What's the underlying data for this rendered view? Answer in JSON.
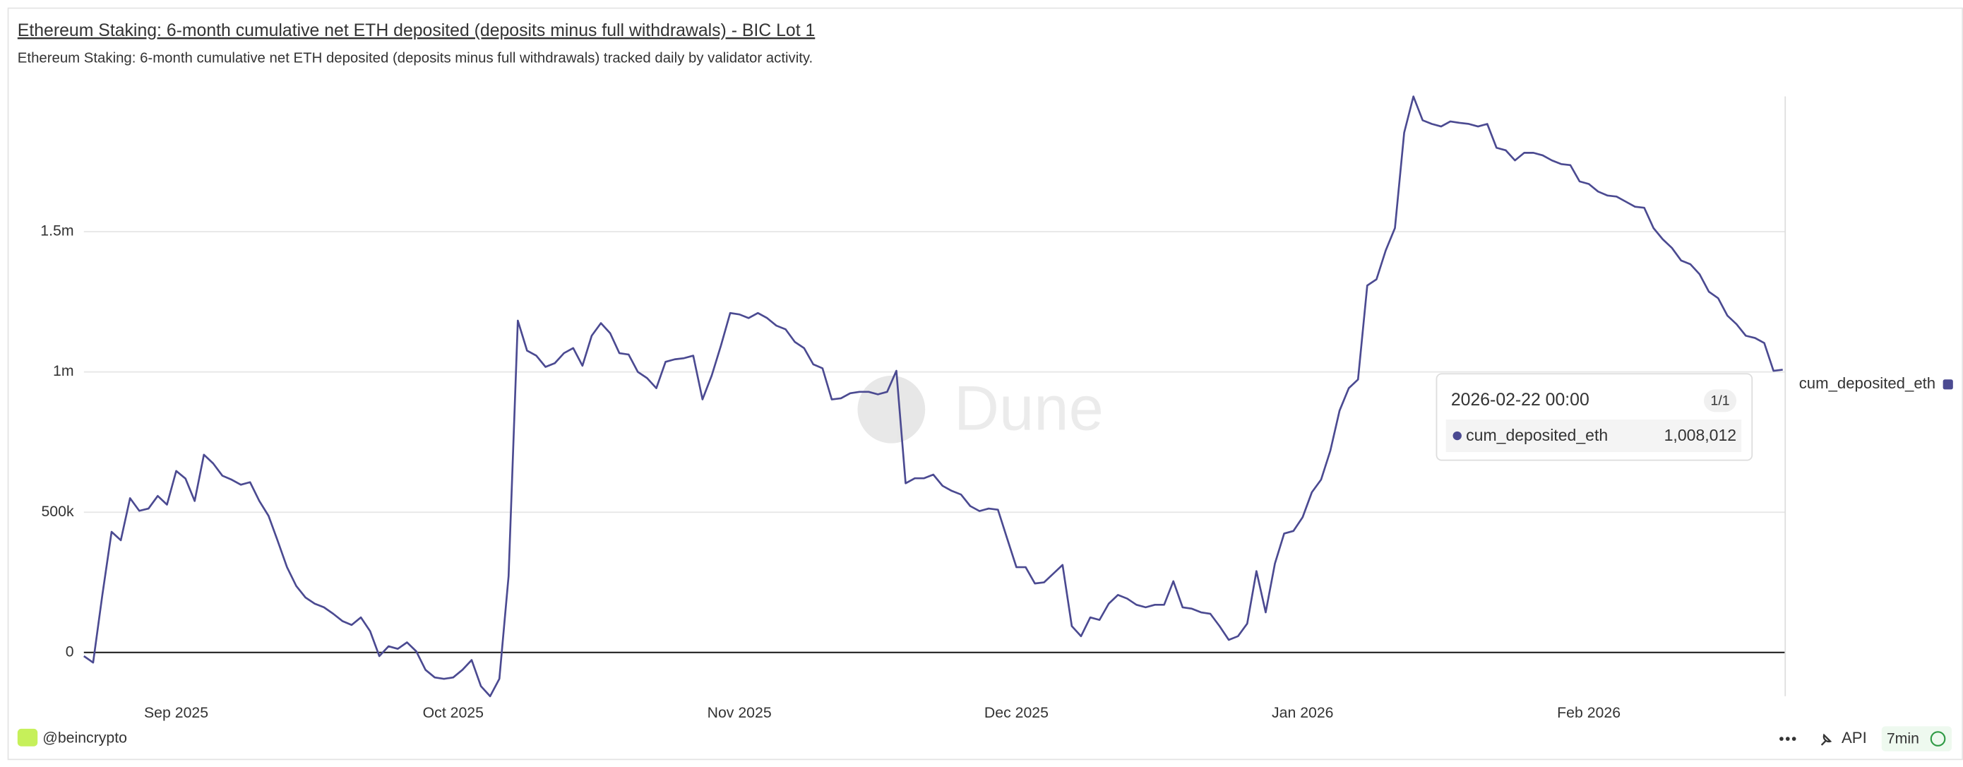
{
  "chart_data": {
    "type": "line",
    "title": "Ethereum Staking: 6-month cumulative net ETH deposited (deposits minus full withdrawals) - BIC Lot 1",
    "subtitle": "Ethereum Staking: 6-month cumulative net ETH deposited (deposits minus full withdrawals) tracked daily by validator activity.",
    "x": [
      "2025-08-22",
      "2025-08-23",
      "2025-08-24",
      "2025-08-25",
      "2025-08-26",
      "2025-08-27",
      "2025-08-28",
      "2025-08-29",
      "2025-08-30",
      "2025-08-31",
      "2025-09-01",
      "2025-09-02",
      "2025-09-03",
      "2025-09-04",
      "2025-09-05",
      "2025-09-06",
      "2025-09-07",
      "2025-09-08",
      "2025-09-09",
      "2025-09-10",
      "2025-09-11",
      "2025-09-12",
      "2025-09-13",
      "2025-09-14",
      "2025-09-15",
      "2025-09-16",
      "2025-09-17",
      "2025-09-18",
      "2025-09-19",
      "2025-09-20",
      "2025-09-21",
      "2025-09-22",
      "2025-09-23",
      "2025-09-24",
      "2025-09-25",
      "2025-09-26",
      "2025-09-27",
      "2025-09-28",
      "2025-09-29",
      "2025-09-30",
      "2025-10-01",
      "2025-10-02",
      "2025-10-03",
      "2025-10-04",
      "2025-10-05",
      "2025-10-06",
      "2025-10-07",
      "2025-10-08",
      "2025-10-09",
      "2025-10-10",
      "2025-10-11",
      "2025-10-12",
      "2025-10-13",
      "2025-10-14",
      "2025-10-15",
      "2025-10-16",
      "2025-10-17",
      "2025-10-18",
      "2025-10-19",
      "2025-10-20",
      "2025-10-21",
      "2025-10-22",
      "2025-10-23",
      "2025-10-24",
      "2025-10-25",
      "2025-10-26",
      "2025-10-27",
      "2025-10-28",
      "2025-10-29",
      "2025-10-30",
      "2025-10-31",
      "2025-11-01",
      "2025-11-02",
      "2025-11-03",
      "2025-11-04",
      "2025-11-05",
      "2025-11-06",
      "2025-11-07",
      "2025-11-08",
      "2025-11-09",
      "2025-11-10",
      "2025-11-11",
      "2025-11-12",
      "2025-11-13",
      "2025-11-14",
      "2025-11-15",
      "2025-11-16",
      "2025-11-17",
      "2025-11-18",
      "2025-11-19",
      "2025-11-20",
      "2025-11-21",
      "2025-11-22",
      "2025-11-23",
      "2025-11-24",
      "2025-11-25",
      "2025-11-26",
      "2025-11-27",
      "2025-11-28",
      "2025-11-29",
      "2025-11-30",
      "2025-12-01",
      "2025-12-02",
      "2025-12-03",
      "2025-12-04",
      "2025-12-05",
      "2025-12-06",
      "2025-12-07",
      "2025-12-08",
      "2025-12-09",
      "2025-12-10",
      "2025-12-11",
      "2025-12-12",
      "2025-12-13",
      "2025-12-14",
      "2025-12-15",
      "2025-12-16",
      "2025-12-17",
      "2025-12-18",
      "2025-12-19",
      "2025-12-20",
      "2025-12-21",
      "2025-12-22",
      "2025-12-23",
      "2025-12-24",
      "2025-12-25",
      "2025-12-26",
      "2025-12-27",
      "2025-12-28",
      "2025-12-29",
      "2025-12-30",
      "2025-12-31",
      "2026-01-01",
      "2026-01-02",
      "2026-01-03",
      "2026-01-04",
      "2026-01-05",
      "2026-01-06",
      "2026-01-07",
      "2026-01-08",
      "2026-01-09",
      "2026-01-10",
      "2026-01-11",
      "2026-01-12",
      "2026-01-13",
      "2026-01-14",
      "2026-01-15",
      "2026-01-16",
      "2026-01-17",
      "2026-01-18",
      "2026-01-19",
      "2026-01-20",
      "2026-01-21",
      "2026-01-22",
      "2026-01-23",
      "2026-01-24",
      "2026-01-25",
      "2026-01-26",
      "2026-01-27",
      "2026-01-28",
      "2026-01-29",
      "2026-01-30",
      "2026-01-31",
      "2026-02-01",
      "2026-02-02",
      "2026-02-03",
      "2026-02-04",
      "2026-02-05",
      "2026-02-06",
      "2026-02-07",
      "2026-02-08",
      "2026-02-09",
      "2026-02-10",
      "2026-02-11",
      "2026-02-12",
      "2026-02-13",
      "2026-02-14",
      "2026-02-15",
      "2026-02-16",
      "2026-02-17",
      "2026-02-18",
      "2026-02-19",
      "2026-02-20",
      "2026-02-21",
      "2026-02-22"
    ],
    "series": [
      {
        "name": "cum_deposited_eth",
        "color": "#4b4a91",
        "values": [
          -13000,
          -36000,
          205000,
          430000,
          400000,
          550000,
          505000,
          513000,
          558000,
          527000,
          647000,
          620000,
          540000,
          705000,
          674000,
          630000,
          616000,
          598000,
          607000,
          540000,
          487000,
          397000,
          304000,
          237000,
          196000,
          174000,
          161000,
          138000,
          112000,
          98000,
          125000,
          76000,
          -13000,
          22000,
          13000,
          36000,
          4000,
          -62000,
          -89000,
          -94000,
          -89000,
          -62000,
          -27000,
          -120000,
          -156000,
          -94000,
          272000,
          1183000,
          1076000,
          1058000,
          1018000,
          1031000,
          1067000,
          1085000,
          1022000,
          1129000,
          1174000,
          1138000,
          1067000,
          1062000,
          1000000,
          978000,
          942000,
          1036000,
          1045000,
          1049000,
          1058000,
          902000,
          987000,
          1094000,
          1210000,
          1205000,
          1192000,
          1210000,
          1192000,
          1165000,
          1152000,
          1107000,
          1085000,
          1027000,
          1013000,
          902000,
          906000,
          924000,
          929000,
          929000,
          920000,
          929000,
          1004000,
          603000,
          621000,
          621000,
          634000,
          594000,
          576000,
          563000,
          522000,
          504000,
          513000,
          509000,
          406000,
          304000,
          304000,
          246000,
          250000,
          281000,
          312000,
          94000,
          58000,
          125000,
          116000,
          174000,
          205000,
          192000,
          170000,
          161000,
          170000,
          170000,
          254000,
          161000,
          156000,
          143000,
          138000,
          94000,
          45000,
          58000,
          103000,
          290000,
          143000,
          317000,
          424000,
          433000,
          482000,
          571000,
          616000,
          719000,
          862000,
          942000,
          973000,
          1308000,
          1330000,
          1433000,
          1513000,
          1853000,
          1982000,
          1897000,
          1884000,
          1875000,
          1893000,
          1888000,
          1884000,
          1875000,
          1884000,
          1799000,
          1790000,
          1754000,
          1781000,
          1781000,
          1772000,
          1754000,
          1741000,
          1737000,
          1679000,
          1670000,
          1643000,
          1629000,
          1625000,
          1607000,
          1589000,
          1585000,
          1513000,
          1473000,
          1442000,
          1397000,
          1384000,
          1348000,
          1286000,
          1263000,
          1201000,
          1170000,
          1129000,
          1121000,
          1103000,
          1004000,
          1008012
        ]
      }
    ],
    "xlim": [
      "2025-08-22",
      "2026-02-22"
    ],
    "xticks": [
      {
        "value": "2025-09-01",
        "label": "Sep 2025"
      },
      {
        "value": "2025-10-01",
        "label": "Oct 2025"
      },
      {
        "value": "2025-11-01",
        "label": "Nov 2025"
      },
      {
        "value": "2025-12-01",
        "label": "Dec 2025"
      },
      {
        "value": "2026-01-01",
        "label": "Jan 2026"
      },
      {
        "value": "2026-02-01",
        "label": "Feb 2026"
      }
    ],
    "ylim": [
      -156000,
      1982000
    ],
    "yticks": [
      0,
      {
        "value": 500000,
        "label": "500k"
      },
      {
        "value": 1000000,
        "label": "1m"
      },
      {
        "value": 1500000,
        "label": "1.5m"
      }
    ],
    "grid": true,
    "legend": "right",
    "tooltip": {
      "title": "2026-02-22 00:00",
      "counter": "1/1",
      "value": 1008012,
      "label": "1,008,012"
    }
  },
  "watermark": "Dune",
  "footer": {
    "user": "@beincrypto",
    "api": "API",
    "refresh": "7min"
  }
}
